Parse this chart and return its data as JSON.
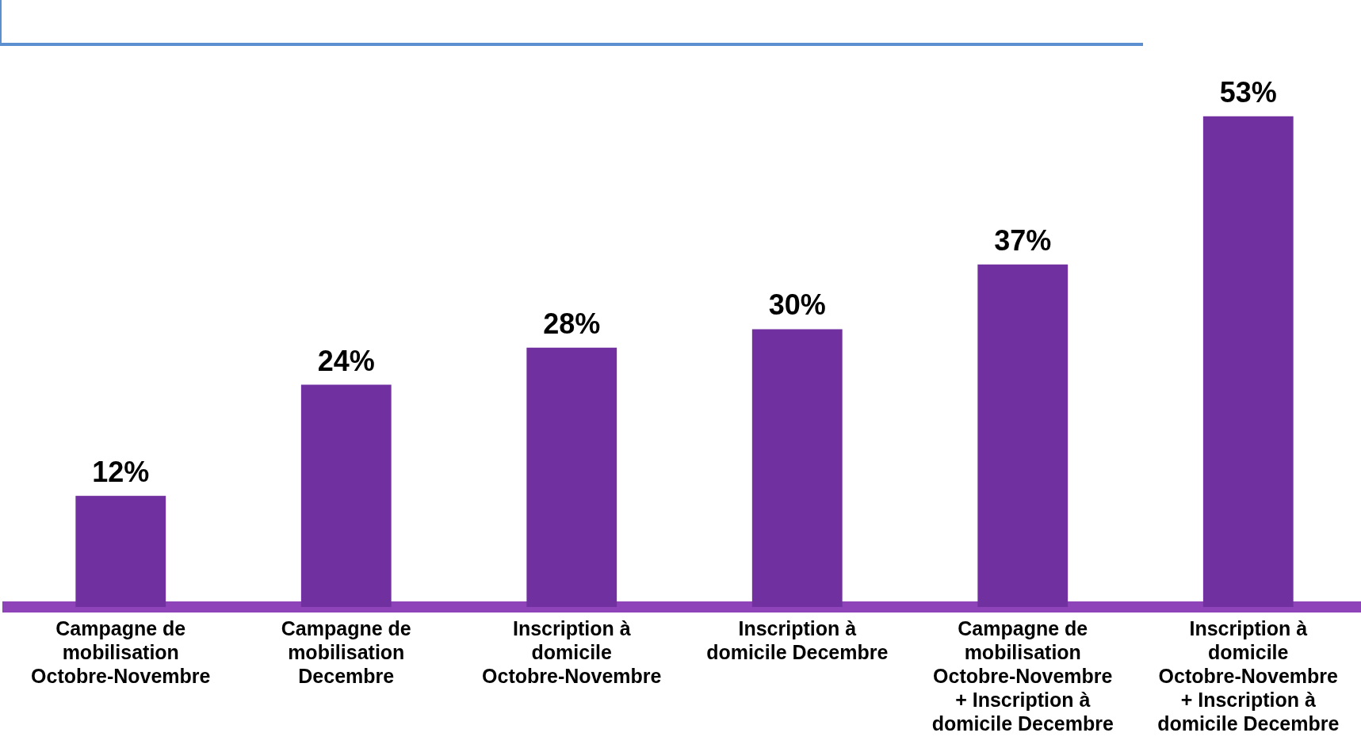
{
  "chart_data": {
    "type": "bar",
    "categories": [
      "Campagne de mobilisation Octobre-Novembre",
      "Campagne de mobilisation Decembre",
      "Inscription à domicile Octobre-Novembre",
      "Inscription à domicile Decembre",
      "Campagne de mobilisation Octobre-Novembre + Inscription à domicile Decembre",
      "Inscription à domicile Octobre-Novembre + Inscription à domicile Decembre"
    ],
    "values": [
      12,
      24,
      28,
      30,
      37,
      53
    ],
    "value_labels": [
      "12%",
      "24%",
      "28%",
      "30%",
      "37%",
      "53%"
    ],
    "color": "#7030a0",
    "grid": false,
    "legend": false
  }
}
